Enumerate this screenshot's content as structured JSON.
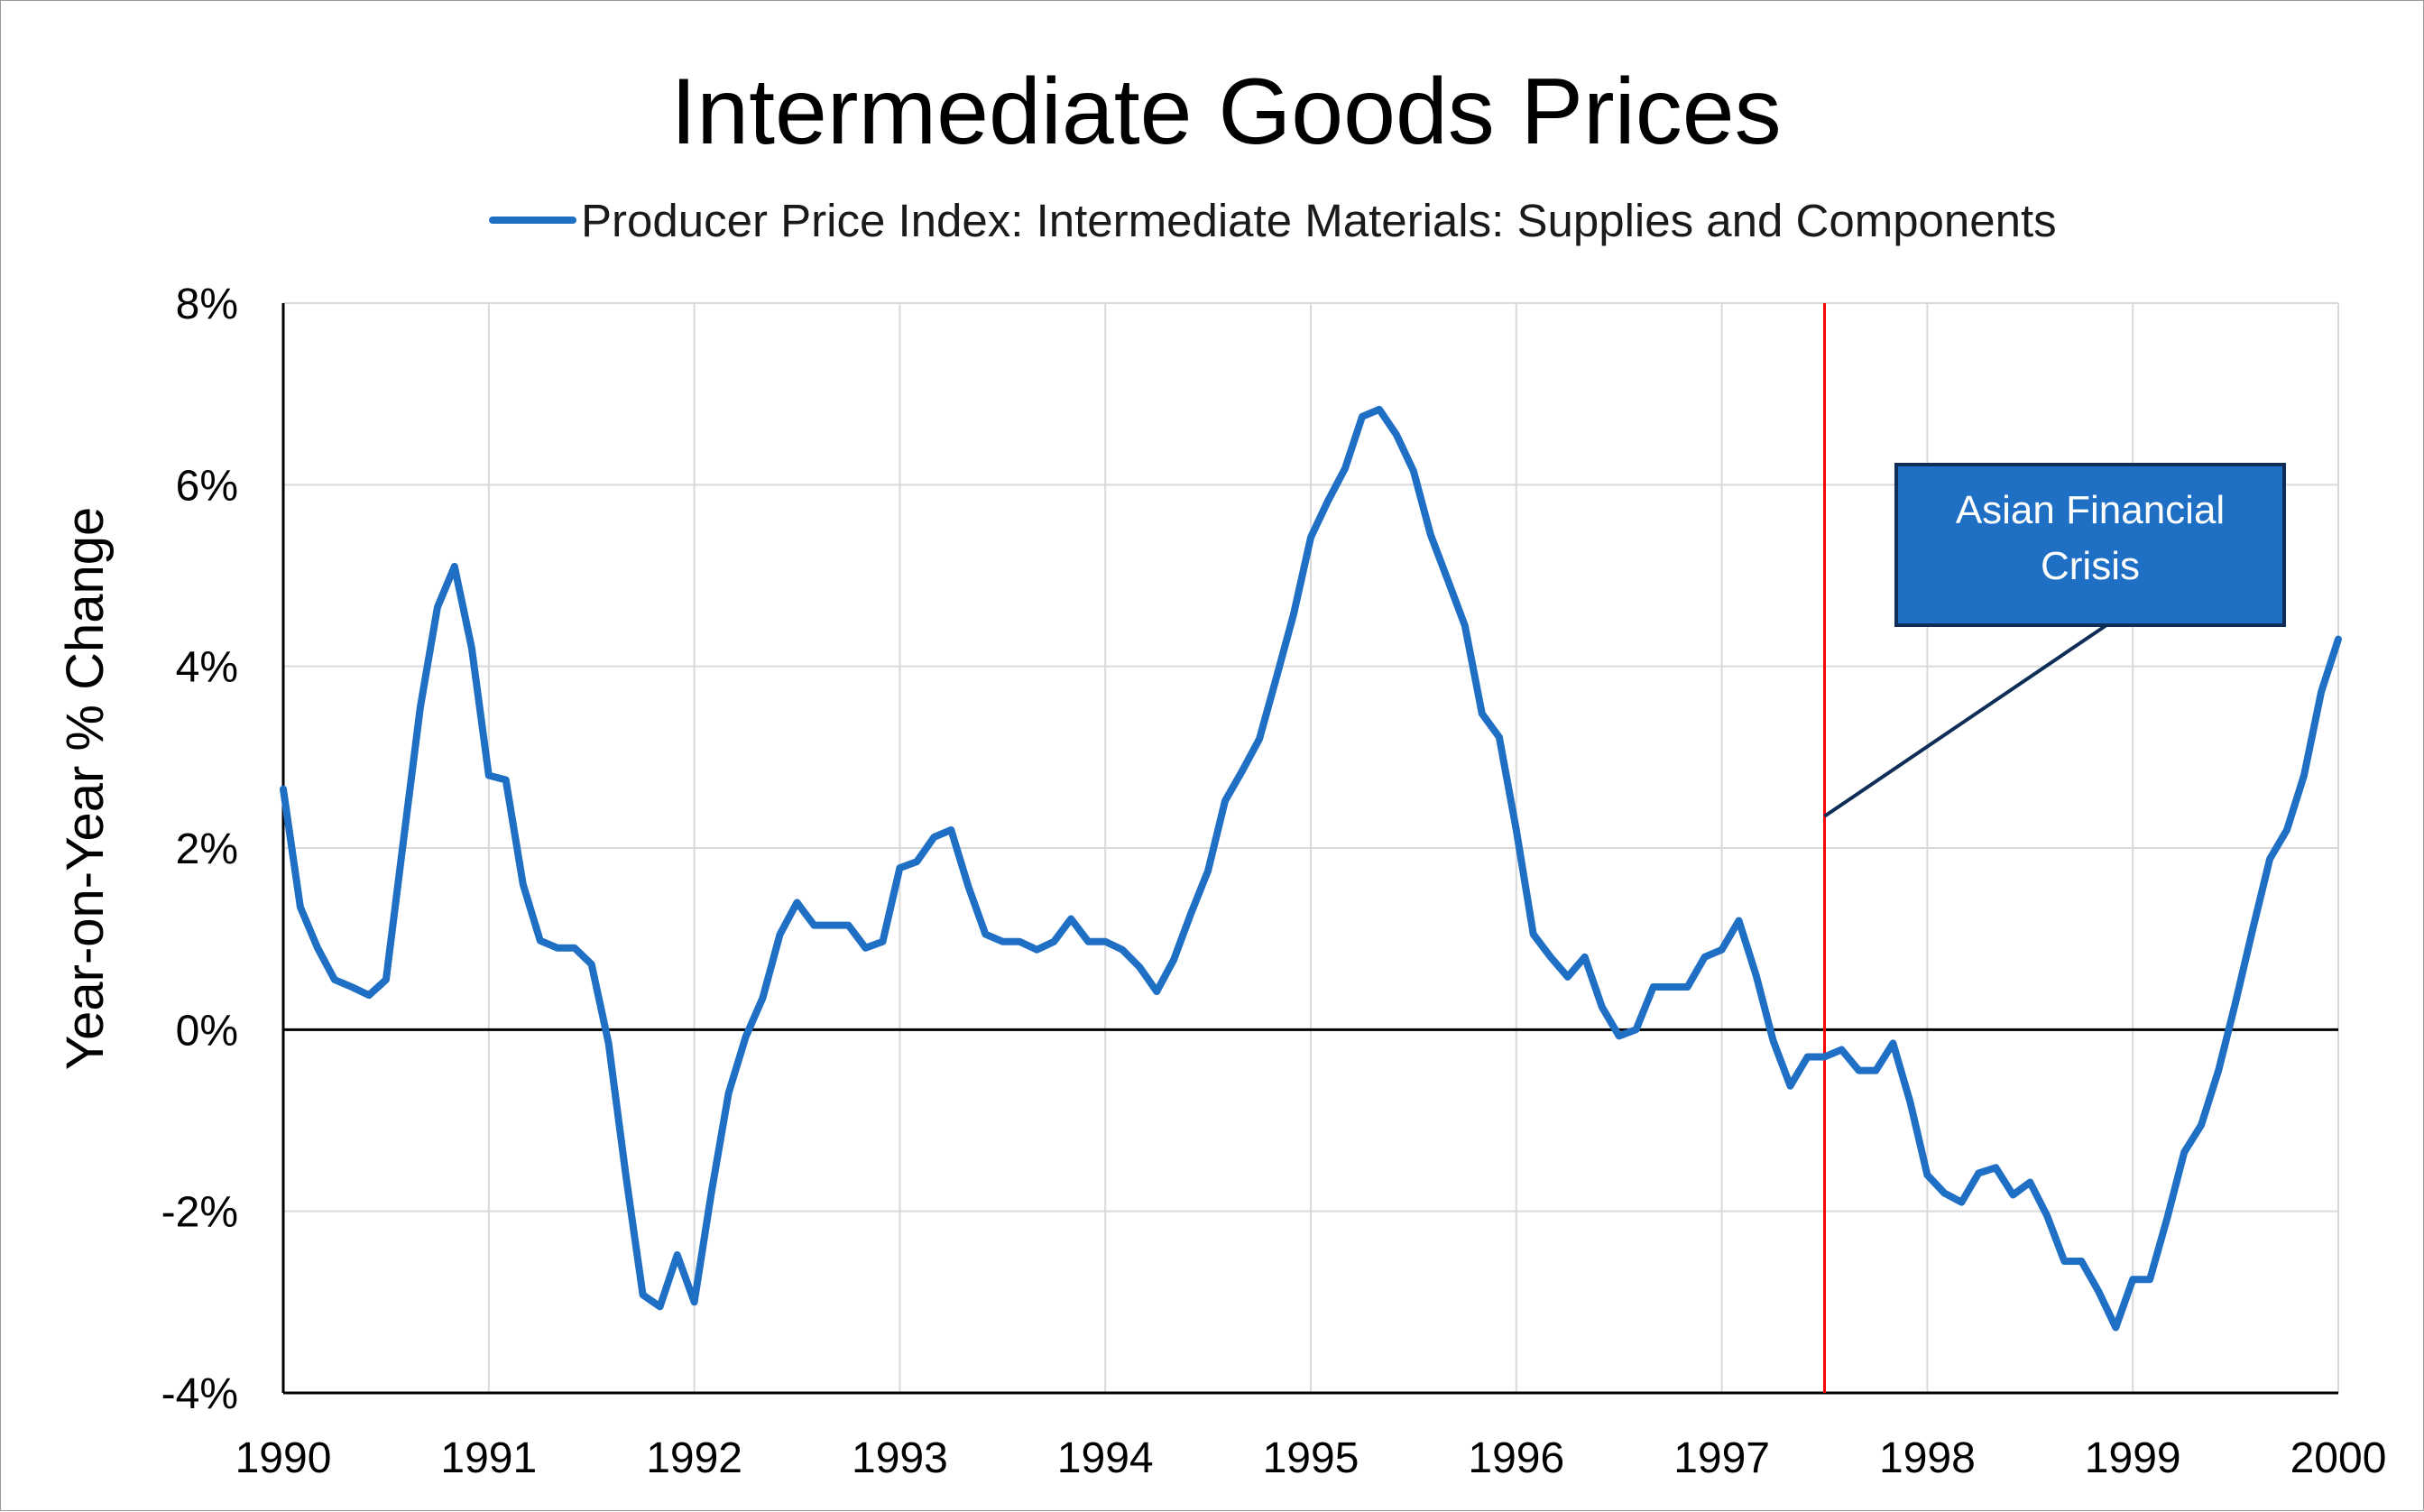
{
  "chart_data": {
    "type": "line",
    "title": "Intermediate Goods Prices",
    "ylabel": "Year-on-Year % Change",
    "xlabel": "",
    "xlim": [
      1990,
      2000
    ],
    "ylim": [
      -4,
      8
    ],
    "grid": true,
    "legend_position": "top-center",
    "x_ticks": [
      1990,
      1991,
      1992,
      1993,
      1994,
      1995,
      1996,
      1997,
      1998,
      1999,
      2000
    ],
    "x_tick_labels": [
      "1990",
      "1991",
      "1992",
      "1993",
      "1994",
      "1995",
      "1996",
      "1997",
      "1998",
      "1999",
      "2000"
    ],
    "y_ticks": [
      -4,
      -2,
      0,
      2,
      4,
      6,
      8
    ],
    "y_tick_labels": [
      "-4%",
      "-2%",
      "0%",
      "2%",
      "4%",
      "6%",
      "8%"
    ],
    "colors": {
      "series": "#1f6fc5",
      "grid": "#d9d9d9",
      "zero_line": "#000000",
      "event_line": "#ff0000",
      "annotation_fill": "#1f6fc5",
      "annotation_border": "#0f2e57",
      "leader_line": "#0f2e57"
    },
    "series": [
      {
        "name": "Producer Price Index: Intermediate Materials: Supplies and Components",
        "x": [
          1990.0,
          1990.083,
          1990.167,
          1990.25,
          1990.333,
          1990.417,
          1990.5,
          1990.583,
          1990.667,
          1990.75,
          1990.833,
          1990.917,
          1991.0,
          1991.083,
          1991.167,
          1991.25,
          1991.333,
          1991.417,
          1991.5,
          1991.583,
          1991.667,
          1991.75,
          1991.833,
          1991.917,
          1992.0,
          1992.083,
          1992.167,
          1992.25,
          1992.333,
          1992.417,
          1992.5,
          1992.583,
          1992.667,
          1992.75,
          1992.833,
          1992.917,
          1993.0,
          1993.083,
          1993.167,
          1993.25,
          1993.333,
          1993.417,
          1993.5,
          1993.583,
          1993.667,
          1993.75,
          1993.833,
          1993.917,
          1994.0,
          1994.083,
          1994.167,
          1994.25,
          1994.333,
          1994.417,
          1994.5,
          1994.583,
          1994.667,
          1994.75,
          1994.833,
          1994.917,
          1995.0,
          1995.083,
          1995.167,
          1995.25,
          1995.333,
          1995.417,
          1995.5,
          1995.583,
          1995.667,
          1995.75,
          1995.833,
          1995.917,
          1996.0,
          1996.083,
          1996.167,
          1996.25,
          1996.333,
          1996.417,
          1996.5,
          1996.583,
          1996.667,
          1996.75,
          1996.833,
          1996.917,
          1997.0,
          1997.083,
          1997.167,
          1997.25,
          1997.333,
          1997.417,
          1997.5,
          1997.583,
          1997.667,
          1997.75,
          1997.833,
          1997.917,
          1998.0,
          1998.083,
          1998.167,
          1998.25,
          1998.333,
          1998.417,
          1998.5,
          1998.583,
          1998.667,
          1998.75,
          1998.833,
          1998.917,
          1999.0,
          1999.083,
          1999.167,
          1999.25,
          1999.333,
          1999.417,
          1999.5,
          1999.583,
          1999.667,
          1999.75,
          1999.833,
          1999.917,
          2000.0
        ],
        "values": [
          2.65,
          1.35,
          0.9,
          0.55,
          0.47,
          0.38,
          0.55,
          2.05,
          3.55,
          4.65,
          5.1,
          4.2,
          2.8,
          2.75,
          1.6,
          0.98,
          0.9,
          0.9,
          0.72,
          -0.15,
          -1.6,
          -2.92,
          -3.05,
          -2.48,
          -3.0,
          -1.8,
          -0.7,
          -0.08,
          0.35,
          1.05,
          1.4,
          1.15,
          1.15,
          1.15,
          0.9,
          0.97,
          1.78,
          1.85,
          2.12,
          2.2,
          1.58,
          1.05,
          0.97,
          0.97,
          0.88,
          0.97,
          1.22,
          0.97,
          0.97,
          0.88,
          0.69,
          0.42,
          0.77,
          1.28,
          1.75,
          2.52,
          2.85,
          3.2,
          3.88,
          4.58,
          5.42,
          5.82,
          6.18,
          6.75,
          6.83,
          6.55,
          6.15,
          5.45,
          4.95,
          4.45,
          3.48,
          3.22,
          2.2,
          1.05,
          0.8,
          0.58,
          0.8,
          0.25,
          -0.07,
          0.0,
          0.47,
          0.47,
          0.47,
          0.8,
          0.88,
          1.2,
          0.6,
          -0.12,
          -0.62,
          -0.3,
          -0.3,
          -0.22,
          -0.45,
          -0.45,
          -0.15,
          -0.8,
          -1.6,
          -1.8,
          -1.9,
          -1.58,
          -1.52,
          -1.82,
          -1.68,
          -2.05,
          -2.55,
          -2.55,
          -2.88,
          -3.28,
          -2.75,
          -2.75,
          -2.08,
          -1.35,
          -1.05,
          -0.45,
          0.3,
          1.1,
          1.88,
          2.2,
          2.8,
          3.72,
          4.3
        ]
      }
    ],
    "event_marker": {
      "x": 1997.5
    },
    "annotation": {
      "line1": "Asian Financial",
      "line2": "Crisis",
      "pointer_target": {
        "x": 1997.5,
        "y": 2.35
      }
    }
  }
}
